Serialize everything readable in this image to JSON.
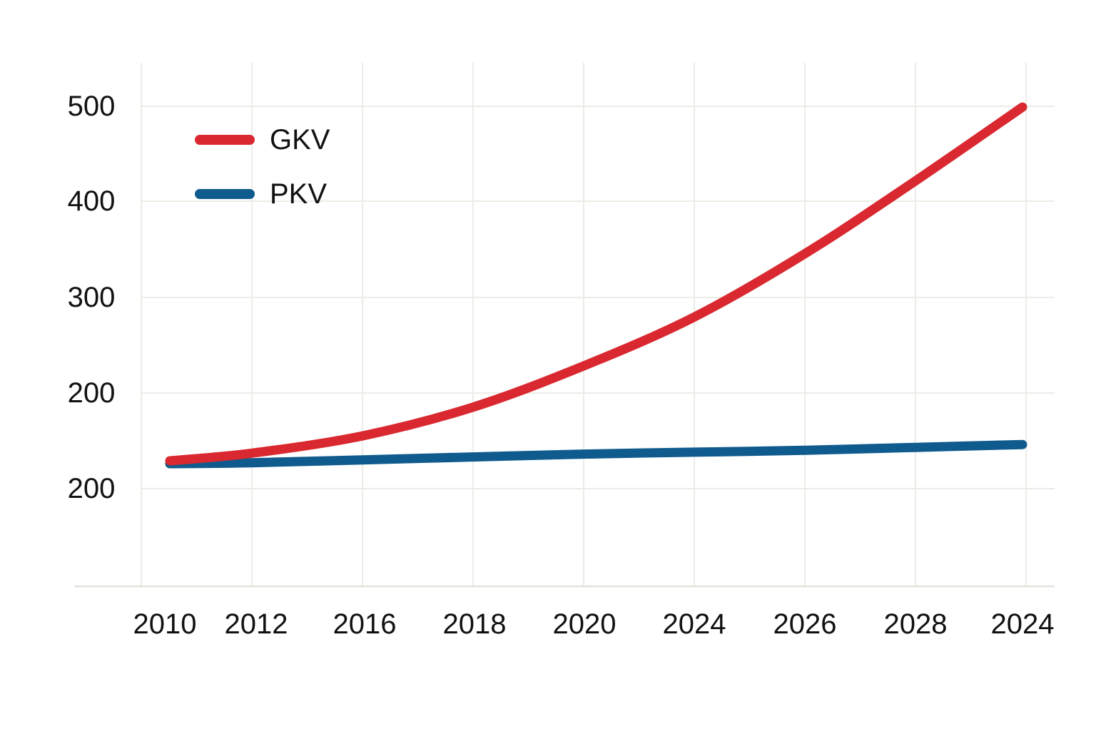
{
  "chart_data": {
    "type": "line",
    "title": "",
    "xlabel": "",
    "ylabel": "",
    "categories": [
      "2010",
      "2012",
      "2016",
      "2018",
      "2020",
      "2024",
      "2026",
      "2028",
      "2024"
    ],
    "y_tick_labels": [
      "500",
      "400",
      "300",
      "200",
      "200"
    ],
    "grid": true,
    "legend_position": "top-left",
    "series": [
      {
        "name": "GKV",
        "color": "#d9282f",
        "values": [
          229,
          237,
          255,
          285,
          328,
          379,
          445,
          521,
          598
        ]
      },
      {
        "name": "PKV",
        "color": "#0f5b8e",
        "values": [
          226,
          227,
          230,
          233,
          236,
          238,
          240,
          243,
          246
        ]
      }
    ]
  }
}
